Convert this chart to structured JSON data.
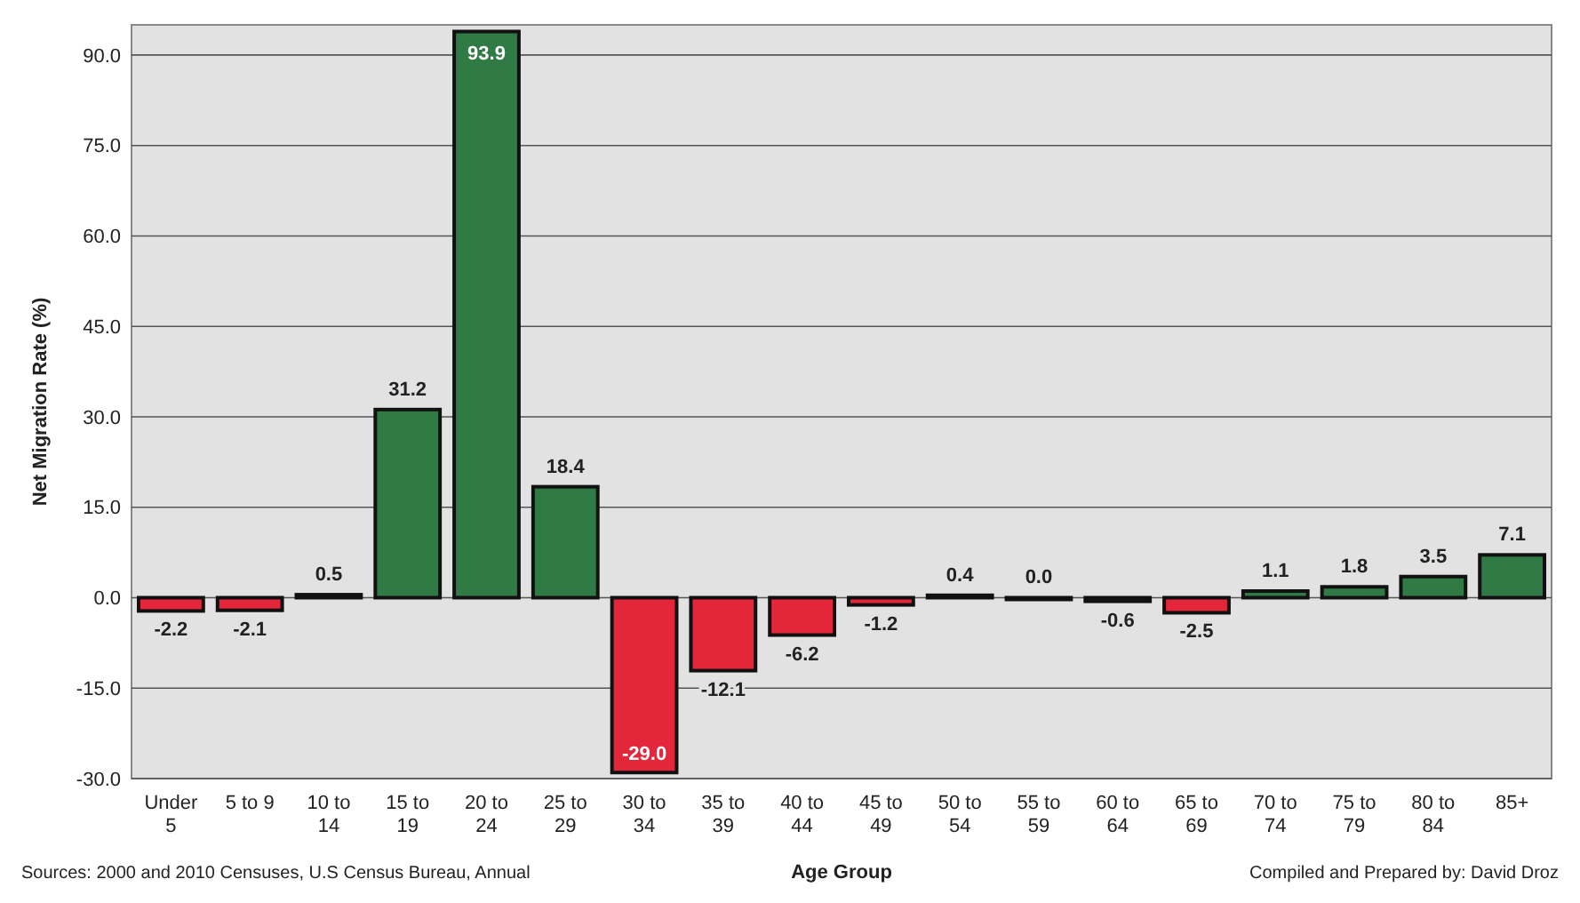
{
  "chart_data": {
    "type": "bar",
    "xlabel": "Age Group",
    "ylabel": "Net Migration Rate (%)",
    "categories": [
      "Under 5",
      "5 to 9",
      "10 to 14",
      "15 to 19",
      "20 to 24",
      "25 to 29",
      "30 to 34",
      "35 to 39",
      "40 to 44",
      "45 to 49",
      "50 to 54",
      "55 to 59",
      "60 to 64",
      "65 to 69",
      "70 to 74",
      "75 to 79",
      "80 to 84",
      "85+"
    ],
    "values": [
      -2.2,
      -2.1,
      0.5,
      31.2,
      93.9,
      18.4,
      -29.0,
      -12.1,
      -6.2,
      -1.2,
      0.4,
      0.0,
      -0.6,
      -2.5,
      1.1,
      1.8,
      3.5,
      7.1
    ],
    "colors": [
      "#e3263a",
      "#e3263a",
      "#2f7a45",
      "#2f7a45",
      "#2f7a45",
      "#2f7a45",
      "#e3263a",
      "#e3263a",
      "#e3263a",
      "#e3263a",
      "#2f7a45",
      "#2f7a45",
      "#e3263a",
      "#e3263a",
      "#2f7a45",
      "#2f7a45",
      "#2f7a45",
      "#2f7a45"
    ],
    "value_labels": [
      "-2.2",
      "-2.1",
      "0.5",
      "31.2",
      "93.9",
      "18.4",
      "-29.0",
      "-12.1",
      "-6.2",
      "-1.2",
      "0.4",
      "0.0",
      "-0.6",
      "-2.5",
      "1.1",
      "1.8",
      "3.5",
      "7.1"
    ],
    "ylim": [
      -30,
      95
    ],
    "yticks": [
      {
        "value": -30,
        "label": "-30.0"
      },
      {
        "value": -15,
        "label": "-15.0"
      },
      {
        "value": 0,
        "label": "0.0"
      },
      {
        "value": 15,
        "label": "15.0"
      },
      {
        "value": 30,
        "label": "30.0"
      },
      {
        "value": 45,
        "label": "45.0"
      },
      {
        "value": 60,
        "label": "60.0"
      },
      {
        "value": 75,
        "label": "75.0"
      },
      {
        "value": 90,
        "label": "90.0"
      }
    ],
    "grid": "y",
    "annotations": [
      "Sources: 2000 and 2010 Censuses, U.S Census Bureau, Annual",
      "Compiled and Prepared by: David Droz"
    ]
  }
}
